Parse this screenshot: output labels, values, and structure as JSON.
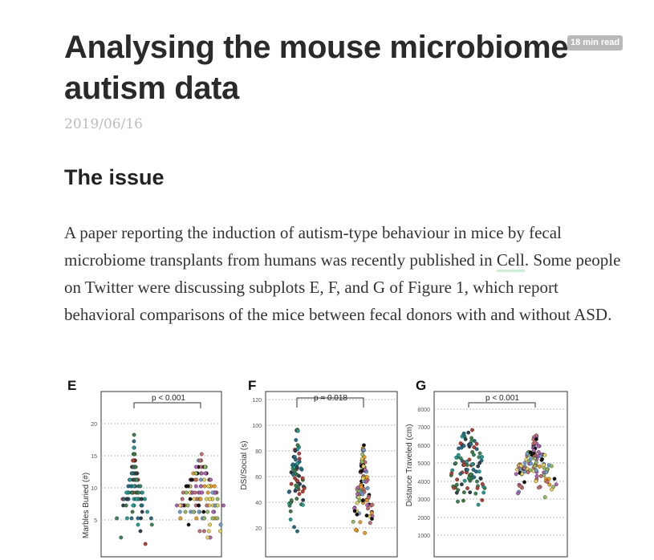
{
  "post": {
    "title": "Analysing the mouse microbiome autism data",
    "read_time": "18 min read",
    "date": "2019/06/16",
    "section_heading": "The issue",
    "paragraph": {
      "before_link": "A paper reporting the induction of autism-type behaviour in mice by fecal microbiome transplants from humans was recently published in ",
      "link_text": "Cell",
      "after_link": ". Some people on Twitter were discussing subplots E, F, and G of Figure 1, which report behavioral comparisons of the mice between fecal donors with and without ASD."
    }
  },
  "figure": {
    "panels": [
      {
        "letter": "E",
        "ylabel": "Marbles Buried (#)",
        "ticks": [
          "5",
          "10",
          "15",
          "20"
        ],
        "pvalue": "p < 0.001"
      },
      {
        "letter": "F",
        "ylabel": "DSI/Social (s)",
        "ticks": [
          "20",
          "40",
          "60",
          "80",
          "100",
          "120"
        ],
        "pvalue": "p = 0.018"
      },
      {
        "letter": "G",
        "ylabel": "Distance Traveled (cm)",
        "ticks": [
          "1000",
          "2000",
          "3000",
          "4000",
          "5000",
          "6000",
          "7000",
          "8000"
        ],
        "pvalue": "p < 0.001"
      }
    ],
    "colors": {
      "control": [
        "#1f6f8b",
        "#2e8b57",
        "#1aa39a",
        "#c0392b",
        "#2c3e50",
        "#3a7d44"
      ],
      "asd": [
        "#e8d44d",
        "#b85db8",
        "#6a9fd8",
        "#f39c12",
        "#111111",
        "#c76b6b",
        "#8fbf5a"
      ]
    }
  }
}
